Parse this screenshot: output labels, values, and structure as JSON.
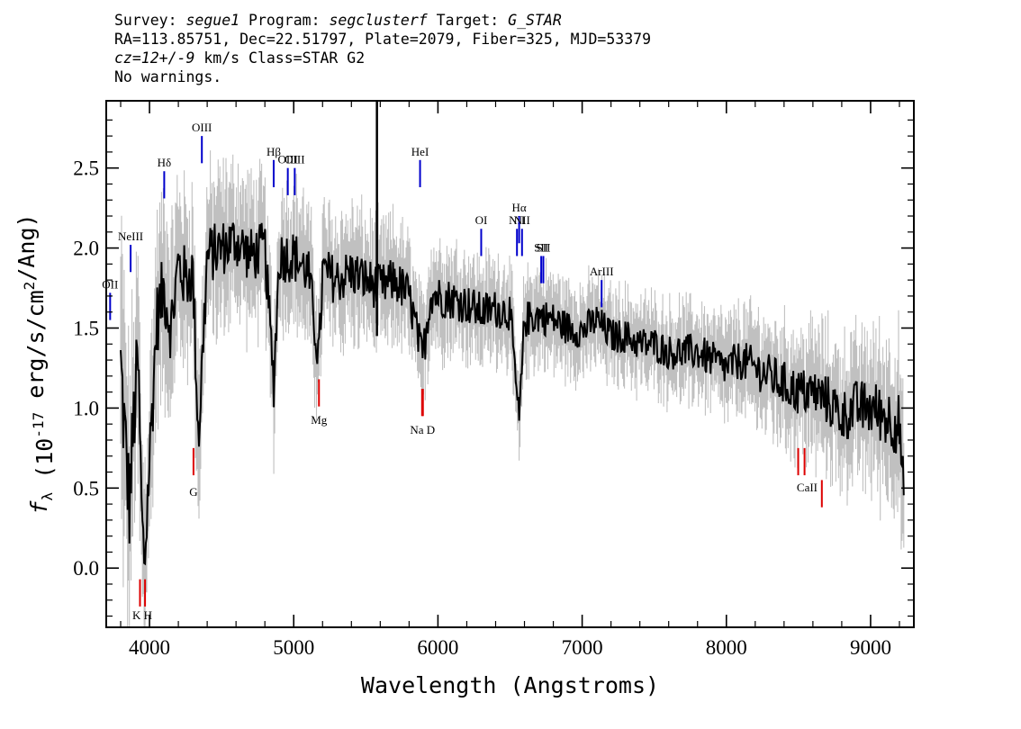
{
  "header": {
    "survey_label": "Survey:",
    "survey": "segue1",
    "program_label": "Program:",
    "program": "segclusterf",
    "target_label": "Target:",
    "target": "G_STAR",
    "line2": "RA=113.85751, Dec=22.51797, Plate=2079, Fiber=325, MJD=53379",
    "cz": "cz=12+/-9",
    "cz_rest": " km/s Class=STAR G2",
    "line4": "No warnings."
  },
  "colors": {
    "flux": "#000000",
    "noise_band": "#c0c0c0",
    "emission_line": "#0000cc",
    "absorption_line": "#dd0000",
    "frame": "#000000"
  },
  "chart_data": {
    "type": "line",
    "xlabel": "Wavelength (Angstroms)",
    "ylabel": "f_λ (10^-17 erg/s/cm^2/Ang)",
    "xlim": [
      3700,
      9300
    ],
    "ylim": [
      -0.37,
      2.92
    ],
    "x_ticks": [
      4000,
      5000,
      6000,
      7000,
      8000,
      9000
    ],
    "y_ticks": [
      0.0,
      0.5,
      1.0,
      1.5,
      2.0,
      2.5
    ],
    "y_tick_labels": [
      "0.0",
      "0.5",
      "1.0",
      "1.5",
      "2.0",
      "2.5"
    ],
    "series": [
      {
        "role": "flux",
        "x": [
          3800,
          3830,
          3860,
          3890,
          3920,
          3950,
          3968,
          3990,
          4050,
          4100,
          4150,
          4200,
          4250,
          4300,
          4340,
          4400,
          4500,
          4600,
          4700,
          4800,
          4861,
          4900,
          5000,
          5100,
          5175,
          5200,
          5300,
          5400,
          5500,
          5600,
          5700,
          5800,
          5893,
          5950,
          6000,
          6100,
          6200,
          6300,
          6400,
          6500,
          6563,
          6600,
          6700,
          6800,
          6900,
          7000,
          7100,
          7200,
          7300,
          7400,
          7500,
          7600,
          7700,
          7800,
          7900,
          8000,
          8100,
          8200,
          8300,
          8400,
          8500,
          8600,
          8700,
          8800,
          8900,
          9000,
          9100,
          9200,
          9230
        ],
        "y": [
          1.25,
          0.8,
          0.4,
          0.9,
          1.3,
          0.2,
          0.05,
          0.5,
          1.55,
          1.75,
          1.5,
          1.9,
          1.8,
          1.85,
          0.8,
          1.95,
          2.0,
          2.05,
          1.95,
          2.0,
          1.15,
          1.95,
          1.95,
          1.85,
          1.3,
          1.85,
          1.8,
          1.85,
          1.8,
          1.75,
          1.8,
          1.7,
          1.3,
          1.72,
          1.7,
          1.68,
          1.65,
          1.6,
          1.62,
          1.6,
          0.9,
          1.55,
          1.58,
          1.55,
          1.5,
          1.48,
          1.55,
          1.45,
          1.45,
          1.4,
          1.4,
          1.35,
          1.35,
          1.35,
          1.3,
          1.25,
          1.3,
          1.25,
          1.2,
          1.15,
          1.1,
          1.1,
          1.05,
          0.95,
          1.0,
          1.0,
          0.95,
          0.9,
          0.4
        ]
      },
      {
        "role": "noise",
        "x": [
          3800,
          3900,
          4000,
          4500,
          5000,
          5500,
          6000,
          6500,
          7000,
          7500,
          8000,
          8500,
          9000,
          9230
        ],
        "y": [
          0.6,
          0.5,
          0.4,
          0.3,
          0.28,
          0.25,
          0.22,
          0.2,
          0.18,
          0.18,
          0.2,
          0.25,
          0.3,
          0.35
        ]
      }
    ],
    "emission_lines": [
      {
        "label": "OII",
        "x": 3727,
        "y": 1.72
      },
      {
        "label": "NeIII",
        "x": 3869,
        "y": 2.02
      },
      {
        "label": "Hδ",
        "x": 4102,
        "y": 2.48
      },
      {
        "label": "OIII",
        "x": 4363,
        "y": 2.7
      },
      {
        "label": "Hβ",
        "x": 4861,
        "y": 2.55
      },
      {
        "label": "OIII",
        "x": 4959,
        "y": 2.5
      },
      {
        "label": "OIII",
        "x": 5007,
        "y": 2.5
      },
      {
        "label": "HeI",
        "x": 5876,
        "y": 2.55
      },
      {
        "label": "OI",
        "x": 6300,
        "y": 2.12
      },
      {
        "label": "NII",
        "x": 6548,
        "y": 2.12
      },
      {
        "label": "Hα",
        "x": 6563,
        "y": 2.2
      },
      {
        "label": "NII",
        "x": 6583,
        "y": 2.12
      },
      {
        "label": "SII",
        "x": 6716,
        "y": 1.95
      },
      {
        "label": "SII",
        "x": 6731,
        "y": 1.95
      },
      {
        "label": "ArIII",
        "x": 7135,
        "y": 1.8
      }
    ],
    "absorption_lines": [
      {
        "label": "K",
        "x": 3934,
        "y": -0.07
      },
      {
        "label": "H",
        "x": 3969,
        "y": -0.07
      },
      {
        "label": "G",
        "x": 4305,
        "y": 0.75
      },
      {
        "label": "Mg",
        "x": 5175,
        "y": 1.18
      },
      {
        "label": "Na",
        "x": 5890,
        "y": 1.12
      },
      {
        "label": "D",
        "x": 5896,
        "y": 1.12
      },
      {
        "label": "CaII",
        "x": 8498,
        "y": 0.75
      },
      {
        "label": "CaII",
        "x": 8542,
        "y": 0.75
      },
      {
        "label": "CaII",
        "x": 8662,
        "y": 0.55
      }
    ],
    "absorption_label_text": [
      {
        "text": "K H",
        "x": 3950,
        "y": -0.32
      },
      {
        "text": "G",
        "x": 4305,
        "y": 0.45
      },
      {
        "text": "Mg",
        "x": 5175,
        "y": 0.9
      },
      {
        "text": "Na  D",
        "x": 5893,
        "y": 0.84
      },
      {
        "text": "CaII",
        "x": 8560,
        "y": 0.48
      }
    ],
    "grid": false,
    "legend": "none"
  }
}
